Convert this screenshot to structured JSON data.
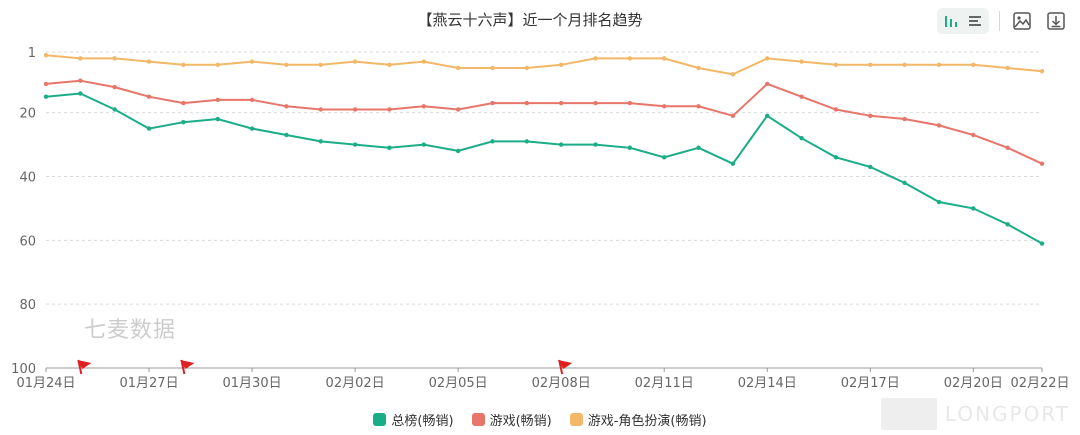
{
  "title": "【燕云十六声】近一个月排名趋势",
  "toolbar": {
    "icons": [
      "bar-chart-icon",
      "list-icon",
      "save-image-icon",
      "download-icon"
    ]
  },
  "watermark": "七麦数据",
  "brand": "LONGPORT",
  "chart_data": {
    "type": "line",
    "title": "【燕云十六声】近一个月排名趋势",
    "xlabel": "",
    "ylabel": "",
    "y_axis": {
      "inverted": true,
      "min": 1,
      "max": 100,
      "ticks": [
        1,
        20,
        40,
        60,
        80,
        100
      ]
    },
    "x_tick_labels": [
      "01月24日",
      "01月27日",
      "01月30日",
      "02月02日",
      "02月05日",
      "02月08日",
      "02月11日",
      "02月14日",
      "02月17日",
      "02月20日",
      "02月22日"
    ],
    "x": [
      "01-24",
      "01-25",
      "01-26",
      "01-27",
      "01-28",
      "01-29",
      "01-30",
      "01-31",
      "02-01",
      "02-02",
      "02-03",
      "02-04",
      "02-05",
      "02-06",
      "02-07",
      "02-08",
      "02-09",
      "02-10",
      "02-11",
      "02-12",
      "02-13",
      "02-14",
      "02-15",
      "02-16",
      "02-17",
      "02-18",
      "02-19",
      "02-20",
      "02-21",
      "02-22"
    ],
    "grid": true,
    "legend_position": "bottom",
    "series": [
      {
        "name": "总榜(畅销)",
        "color": "#1aad87",
        "values": [
          15,
          14,
          19,
          25,
          23,
          22,
          25,
          27,
          29,
          30,
          31,
          30,
          32,
          29,
          29,
          30,
          30,
          31,
          34,
          31,
          36,
          21,
          28,
          34,
          37,
          42,
          48,
          50,
          55,
          61
        ]
      },
      {
        "name": "游戏(畅销)",
        "color": "#e8756a",
        "values": [
          11,
          10,
          12,
          15,
          17,
          16,
          16,
          18,
          19,
          19,
          19,
          18,
          19,
          17,
          17,
          17,
          17,
          17,
          18,
          18,
          21,
          11,
          15,
          19,
          21,
          22,
          24,
          27,
          31,
          36
        ]
      },
      {
        "name": "游戏-角色扮演(畅销)",
        "color": "#f2b867",
        "values": [
          2,
          3,
          3,
          4,
          5,
          5,
          4,
          5,
          5,
          4,
          5,
          4,
          6,
          6,
          6,
          5,
          3,
          3,
          3,
          6,
          8,
          3,
          4,
          5,
          5,
          5,
          5,
          5,
          6,
          7
        ]
      }
    ],
    "markers": [
      {
        "type": "flag",
        "x": "01-25",
        "color": "#e02020"
      },
      {
        "type": "flag",
        "x": "01-28",
        "color": "#e02020"
      },
      {
        "type": "flag",
        "x": "02-08",
        "color": "#e02020"
      }
    ]
  }
}
